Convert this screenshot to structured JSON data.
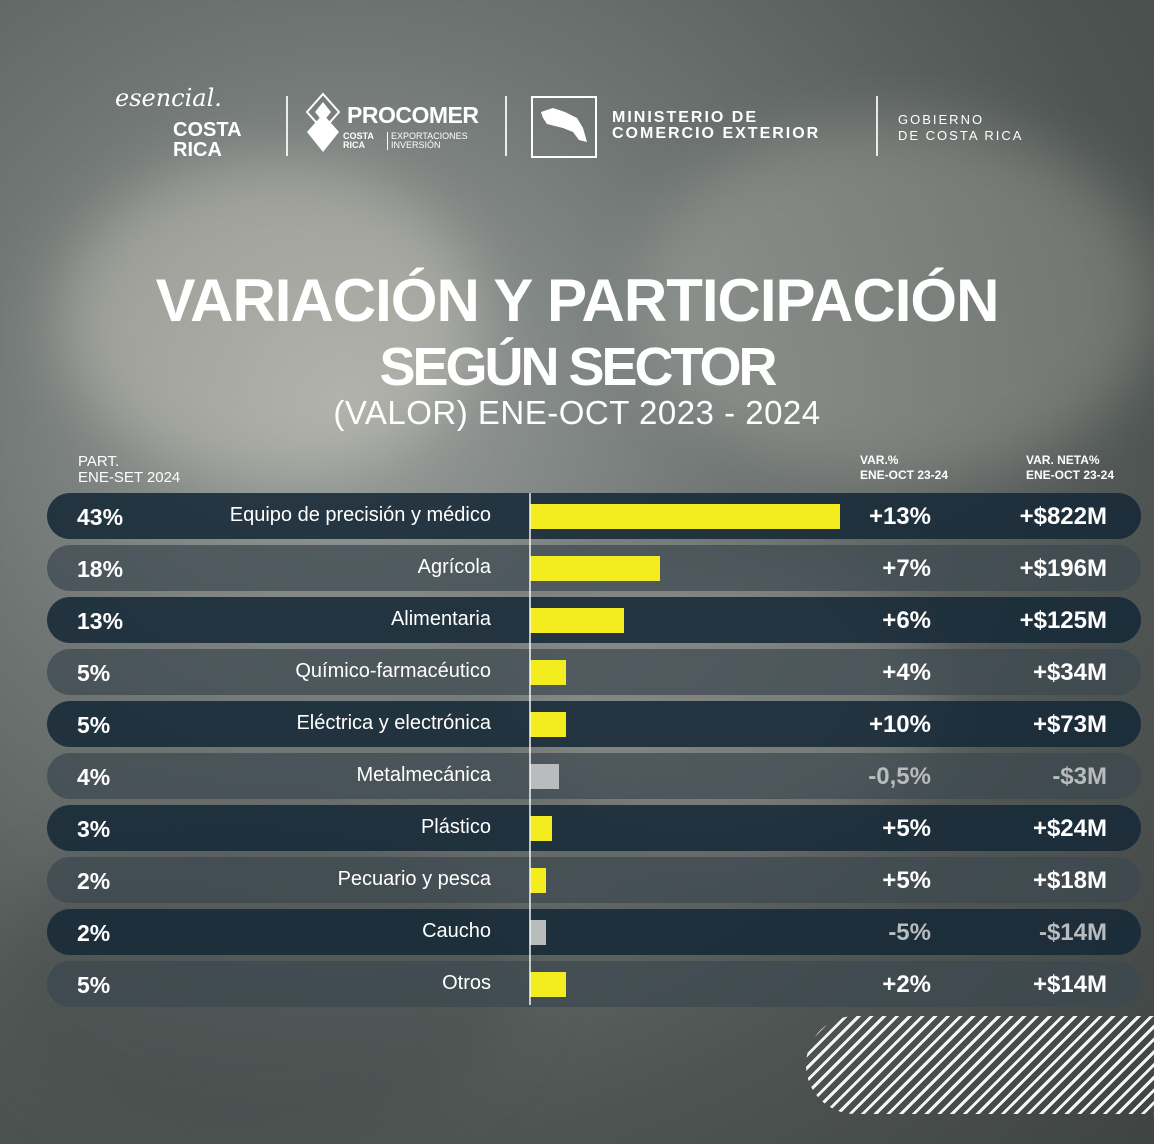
{
  "logos": {
    "esencial_script": "esencial.",
    "esencial_costa": "COSTA",
    "esencial_rica": "RICA",
    "procomer_name": "PROCOMER",
    "procomer_costa": "COSTA",
    "procomer_rica": "RICA",
    "procomer_exp": "EXPORTACIONES",
    "procomer_inv": "INVERSIÓN",
    "comex_line1": "MINISTERIO DE",
    "comex_line2": "COMERCIO EXTERIOR",
    "gob_line1": "GOBIERNO",
    "gob_line2": "DE COSTA RICA"
  },
  "colors": {
    "positive_bar": "#f3ec1f",
    "negative_bar": "#b9bcbd",
    "row_dark": "#172938",
    "row_light": "#3c4850"
  },
  "chart_data": {
    "type": "bar",
    "title": "VARIACIÓN Y PARTICIPACIÓN",
    "subtitle": "SEGÚN SECTOR",
    "period": "(VALOR) ENE-OCT 2023 - 2024",
    "col_part_line1": "PART.",
    "col_part_line2": "ENE-SET 2024",
    "col_var_line1": "VAR.%",
    "col_var_line2": "ENE-OCT 23-24",
    "col_net_line1": "VAR. NETA%",
    "col_net_line2": "ENE-OCT 23-24",
    "rows": [
      {
        "share_label": "43%",
        "share": 43,
        "sector": "Equipo de precisión y médico",
        "var_label": "+13%",
        "var": 13,
        "net_label": "+$822M",
        "net": 822
      },
      {
        "share_label": "18%",
        "share": 18,
        "sector": "Agrícola",
        "var_label": "+7%",
        "var": 7,
        "net_label": "+$196M",
        "net": 196
      },
      {
        "share_label": "13%",
        "share": 13,
        "sector": "Alimentaria",
        "var_label": "+6%",
        "var": 6,
        "net_label": "+$125M",
        "net": 125
      },
      {
        "share_label": "5%",
        "share": 5,
        "sector": "Químico-farmacéutico",
        "var_label": "+4%",
        "var": 4,
        "net_label": "+$34M",
        "net": 34
      },
      {
        "share_label": "5%",
        "share": 5,
        "sector": "Eléctrica y electrónica",
        "var_label": "+10%",
        "var": 10,
        "net_label": "+$73M",
        "net": 73
      },
      {
        "share_label": "4%",
        "share": 4,
        "sector": "Metalmecánica",
        "var_label": "-0,5%",
        "var": -0.5,
        "net_label": "-$3M",
        "net": -3
      },
      {
        "share_label": "3%",
        "share": 3,
        "sector": "Plástico",
        "var_label": "+5%",
        "var": 5,
        "net_label": "+$24M",
        "net": 24
      },
      {
        "share_label": "2%",
        "share": 2,
        "sector": "Pecuario y pesca",
        "var_label": "+5%",
        "var": 5,
        "net_label": "+$18M",
        "net": 18
      },
      {
        "share_label": "2%",
        "share": 2,
        "sector": "Caucho",
        "var_label": "-5%",
        "var": -5,
        "net_label": "-$14M",
        "net": -14
      },
      {
        "share_label": "5%",
        "share": 5,
        "sector": "Otros",
        "var_label": "+2%",
        "var": 2,
        "net_label": "+$14M",
        "net": 14
      }
    ]
  }
}
